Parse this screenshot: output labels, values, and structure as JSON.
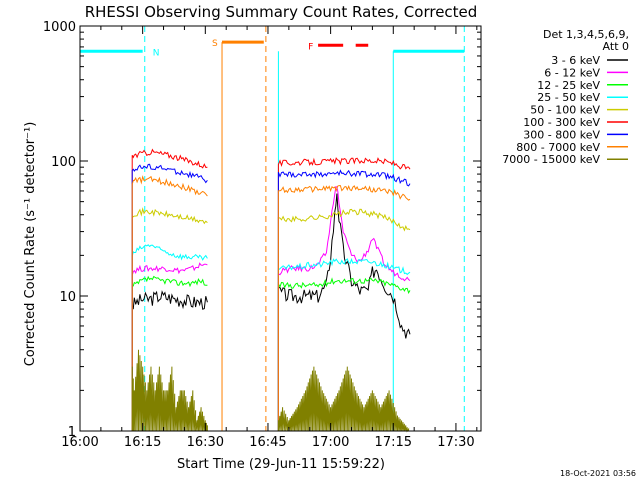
{
  "chart_data": {
    "type": "line",
    "title": "RHESSI Observing Summary Count Rates, Corrected",
    "xlabel": "Start Time (29-Jun-11 15:59:22)",
    "ylabel": "Corrected Count Rate (s⁻¹ detector⁻¹)",
    "ylog": true,
    "ylim": [
      1,
      1000
    ],
    "xlim_minutes": [
      0,
      96
    ],
    "x_tick_labels": [
      "16:00",
      "16:15",
      "16:30",
      "16:45",
      "17:00",
      "17:15",
      "17:30"
    ],
    "x_tick_minutes": [
      0,
      15,
      30,
      45,
      60,
      75,
      90
    ],
    "y_tick_labels": [
      "1",
      "10",
      "100",
      "1000"
    ],
    "y_tick_values": [
      1,
      10,
      100,
      1000
    ],
    "legend_title": [
      "Det 1,3,4,5,6,9,",
      "Att 0"
    ],
    "series": [
      {
        "name": "3 - 6 keV",
        "color": "#000000",
        "segments": [
          {
            "x": [
              12.5,
              13,
              15,
              17,
              19,
              21,
              23,
              25,
              27,
              29,
              30.5
            ],
            "y": [
              8.5,
              8.8,
              9.5,
              9.5,
              10,
              9.8,
              9.5,
              9.3,
              9,
              9,
              9
            ]
          },
          {
            "x": [
              47.5,
              49,
              51,
              53,
              55,
              57,
              59,
              60,
              61,
              61.5,
              62,
              63,
              65,
              67,
              69,
              70,
              71,
              73,
              75,
              76,
              77,
              78,
              79
            ],
            "y": [
              11,
              10.2,
              10,
              10,
              10,
              10,
              12,
              20,
              40,
              60,
              38,
              22,
              13,
              11,
              11,
              15,
              16,
              12,
              10,
              8,
              6,
              5.5,
              5.2
            ]
          }
        ]
      },
      {
        "name": "6 - 12 keV",
        "color": "#ff00ff",
        "segments": [
          {
            "x": [
              12.5,
              13,
              15,
              17,
              19,
              21,
              23,
              25,
              27,
              29,
              30.5
            ],
            "y": [
              15,
              15.5,
              16,
              16,
              16,
              16,
              15.5,
              15.5,
              16,
              17,
              17
            ]
          },
          {
            "x": [
              47.5,
              49,
              51,
              53,
              55,
              57,
              59,
              60,
              61,
              61.5,
              62,
              63,
              65,
              67,
              69,
              70,
              71,
              73,
              75,
              77,
              79
            ],
            "y": [
              15,
              15.5,
              16,
              16,
              16,
              17,
              21,
              35,
              60,
              65,
              50,
              30,
              20,
              18,
              22,
              27,
              23,
              17,
              15,
              14,
              13
            ]
          }
        ]
      },
      {
        "name": "12 - 25 keV",
        "color": "#00ff00",
        "segments": [
          {
            "x": [
              12.5,
              13,
              15,
              17,
              19,
              21,
              23,
              25,
              27,
              29,
              30.5
            ],
            "y": [
              11.5,
              12,
              13,
              13.5,
              13,
              13,
              12.5,
              12.5,
              12.5,
              13,
              12
            ]
          },
          {
            "x": [
              47.5,
              49,
              51,
              53,
              55,
              57,
              59,
              61,
              63,
              65,
              67,
              69,
              71,
              73,
              75,
              77,
              79
            ],
            "y": [
              12,
              12,
              12,
              12,
              12,
              12,
              12.5,
              13,
              13,
              13,
              13,
              13,
              13,
              12.5,
              12,
              11.5,
              11
            ]
          }
        ]
      },
      {
        "name": "25 - 50 keV",
        "color": "#00ffff",
        "segments": [
          {
            "x": [
              12.5,
              13,
              15,
              17,
              19,
              21,
              23,
              25,
              27,
              29,
              30.5
            ],
            "y": [
              20,
              21,
              23,
              24,
              22,
              21,
              20,
              19.5,
              19.5,
              19,
              19
            ]
          },
          {
            "x": [
              47.5,
              49,
              51,
              53,
              55,
              57,
              59,
              61,
              63,
              65,
              67,
              69,
              71,
              73,
              75,
              77,
              79
            ],
            "y": [
              16,
              16,
              16.5,
              16.5,
              17,
              17,
              17.5,
              18,
              18,
              18,
              18,
              18,
              17.5,
              17,
              16,
              15.5,
              15
            ]
          }
        ]
      },
      {
        "name": "50 - 100 keV",
        "color": "#cccc00",
        "segments": [
          {
            "x": [
              12.5,
              13,
              15,
              17,
              19,
              21,
              23,
              25,
              27,
              29,
              30.5
            ],
            "y": [
              40,
              41,
              42,
              42,
              41,
              40,
              39,
              38,
              37,
              36,
              35
            ]
          },
          {
            "x": [
              47.5,
              49,
              51,
              53,
              55,
              57,
              59,
              61,
              63,
              65,
              67,
              69,
              71,
              73,
              75,
              77,
              79
            ],
            "y": [
              37,
              37,
              37,
              37,
              38,
              38,
              39,
              40,
              41,
              42,
              42,
              41,
              40,
              38,
              36,
              33,
              31
            ]
          }
        ]
      },
      {
        "name": "100 - 300 keV",
        "color": "#ff0000",
        "segments": [
          {
            "x": [
              12.5,
              13,
              15,
              17,
              19,
              21,
              23,
              25,
              27,
              29,
              30.5
            ],
            "y": [
              108,
              110,
              114,
              117,
              114,
              111,
              107,
              102,
              98,
              94,
              90
            ]
          },
          {
            "x": [
              47.5,
              49,
              51,
              53,
              55,
              57,
              59,
              61,
              63,
              65,
              67,
              69,
              71,
              73,
              75,
              77,
              79
            ],
            "y": [
              96,
              97,
              97,
              98,
              98,
              98,
              99,
              100,
              100,
              100,
              101,
              101,
              100,
              99,
              96,
              91,
              87
            ]
          }
        ]
      },
      {
        "name": "300 - 800 keV",
        "color": "#0000ff",
        "segments": [
          {
            "x": [
              12.5,
              13,
              15,
              17,
              19,
              21,
              23,
              25,
              27,
              29,
              30.5
            ],
            "y": [
              86,
              88,
              90,
              91,
              89,
              87,
              84,
              81,
              78,
              75,
              72
            ]
          },
          {
            "x": [
              47.5,
              49,
              51,
              53,
              55,
              57,
              59,
              61,
              63,
              65,
              67,
              69,
              71,
              73,
              75,
              77,
              79
            ],
            "y": [
              80,
              79,
              79,
              79,
              80,
              80,
              80,
              81,
              81,
              81,
              81,
              80,
              79,
              78,
              75,
              72,
              68
            ]
          }
        ]
      },
      {
        "name": "800 - 7000 keV",
        "color": "#ff8000",
        "segments": [
          {
            "x": [
              12.5,
              13,
              15,
              17,
              19,
              21,
              23,
              25,
              27,
              29,
              30.5
            ],
            "y": [
              70,
              71,
              73,
              73,
              71,
              69,
              67,
              64,
              61,
              58,
              55
            ]
          },
          {
            "x": [
              47.5,
              49,
              51,
              53,
              55,
              57,
              59,
              61,
              63,
              65,
              67,
              69,
              71,
              73,
              75,
              77,
              79
            ],
            "y": [
              61,
              61,
              61,
              62,
              62,
              62,
              63,
              63,
              63,
              63,
              63,
              62,
              61,
              60,
              58,
              55,
              52
            ]
          }
        ]
      },
      {
        "name": "7000 - 15000 keV",
        "color": "#808000",
        "segments": [
          {
            "x": [
              12.5,
              13,
              14,
              15,
              16,
              17,
              18,
              19,
              20,
              21,
              22,
              23,
              24,
              25,
              26,
              27,
              28,
              29,
              30,
              30.5
            ],
            "y": [
              3,
              2,
              4,
              3,
              2,
              3,
              2,
              3,
              2,
              2,
              3,
              1.5,
              2,
              2,
              1.5,
              2,
              1.2,
              1.5,
              1.2,
              1.1
            ]
          },
          {
            "x": [
              47.5,
              48.5,
              50,
              52,
              54,
              56,
              58,
              60,
              62,
              64,
              66,
              68,
              70,
              72,
              74,
              76,
              78,
              79
            ],
            "y": [
              1.2,
              1.5,
              1.2,
              1.5,
              2,
              3,
              2,
              1.5,
              2,
              3,
              2,
              1.5,
              2,
              1.5,
              2,
              1.3,
              1.1,
              1
            ]
          }
        ]
      }
    ],
    "annotations": [
      {
        "label": "N",
        "color": "#00ffff",
        "level": 650,
        "bars": [
          [
            0,
            15
          ],
          [
            75,
            92
          ]
        ],
        "dashed_at": [
          15.5,
          92
        ],
        "solid_at": [
          0,
          47.5,
          75
        ]
      },
      {
        "label": "S",
        "color": "#ff8000",
        "level": 760,
        "bars": [
          [
            34,
            44
          ]
        ],
        "dashed_at": [
          44.5
        ],
        "solid_at": [
          34
        ]
      },
      {
        "label": "F",
        "color": "#ff0000",
        "level": 720,
        "bars": [
          [
            57,
            63
          ],
          [
            66,
            69
          ]
        ]
      }
    ],
    "timestamp": "18-Oct-2021 03:56"
  }
}
